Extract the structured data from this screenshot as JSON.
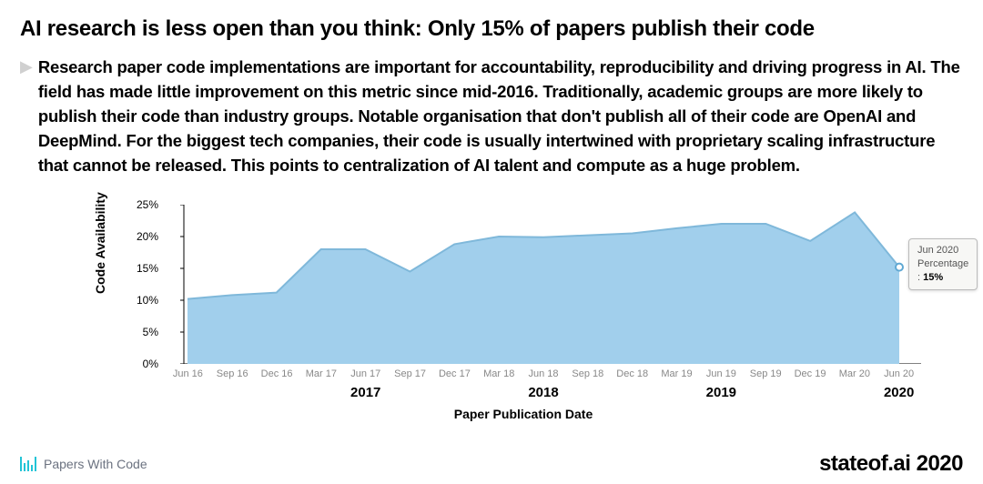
{
  "title": "AI research is less open than you think: Only 15% of papers publish their code",
  "description": "Research paper code implementations are important for accountability, reproducibility and driving progress in AI. The field has made little improvement on this metric since mid-2016. Traditionally, academic groups are more likely to publish their code than industry groups. Notable organisation that don't publish all of their code are OpenAI and DeepMind. For the biggest tech companies, their code is usually intertwined with proprietary scaling infrastructure that cannot be released. This points to centralization of AI talent and compute as a huge problem.",
  "chart": {
    "type": "area",
    "yaxis_title": "Code Availability",
    "xaxis_title": "Paper Publication Date",
    "ylim": [
      0,
      25
    ],
    "ytick_step": 5,
    "yticks": [
      "0%",
      "5%",
      "10%",
      "15%",
      "20%",
      "25%"
    ],
    "categories": [
      "Jun 16",
      "Sep 16",
      "Dec 16",
      "Mar 17",
      "Jun 17",
      "Sep 17",
      "Dec 17",
      "Mar 18",
      "Jun 18",
      "Sep 18",
      "Dec 18",
      "Mar 19",
      "Jun 19",
      "Sep 19",
      "Dec 19",
      "Mar 20",
      "Jun 20"
    ],
    "values": [
      10.2,
      10.8,
      11.2,
      18.0,
      18.0,
      14.5,
      18.8,
      20.0,
      19.9,
      20.2,
      20.5,
      21.3,
      22.0,
      22.0,
      19.3,
      23.8,
      15.2
    ],
    "year_markers": [
      "",
      "",
      "",
      "",
      "2017",
      "",
      "",
      "",
      "2018",
      "",
      "",
      "",
      "2019",
      "",
      "",
      "",
      "2020"
    ],
    "fill_color": "#a1cfec",
    "line_color": "#7fb8da",
    "line_width": 2,
    "axis_color": "#000000",
    "background_color": "#ffffff",
    "tooltip": {
      "label": "Jun 2020",
      "value_prefix": "Percentage : ",
      "value": "15%",
      "point_index": 16,
      "marker_fill": "#ffffff",
      "marker_stroke": "#5fa8d3",
      "marker_radius": 4
    },
    "label_fontsize": 12,
    "title_fontsize": 14
  },
  "footer": {
    "source": "Papers With Code",
    "brand": "stateof.ai 2020",
    "icon_color": "#22c4d6"
  }
}
